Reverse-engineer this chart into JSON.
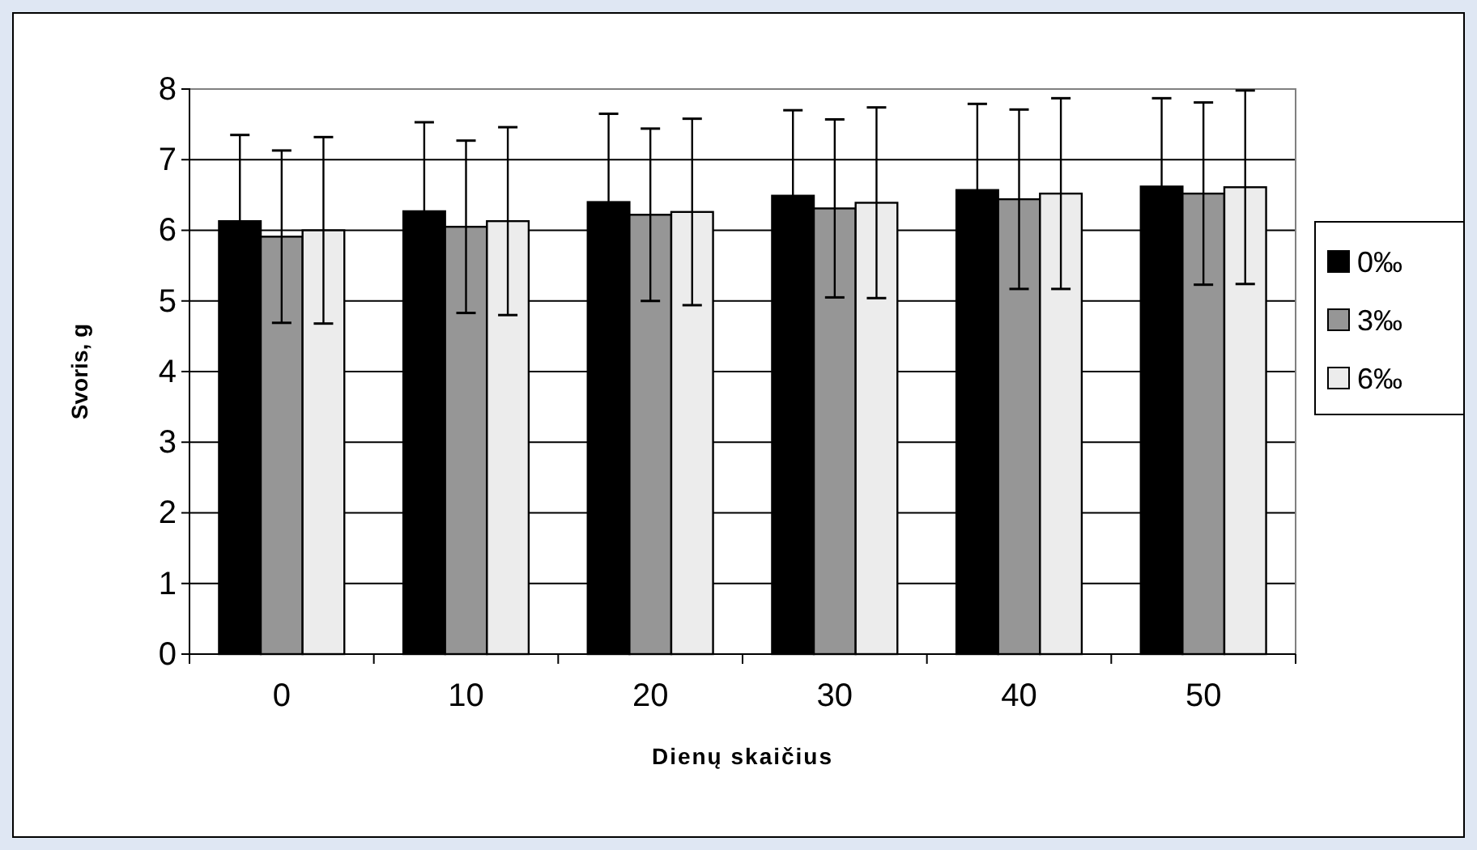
{
  "chart_data": {
    "type": "bar",
    "xlabel": "Dienų skaičius",
    "ylabel": "Svoris, g",
    "categories": [
      "0",
      "10",
      "20",
      "30",
      "40",
      "50"
    ],
    "series": [
      {
        "name": "0‰",
        "color": "#000000",
        "values": [
          6.13,
          6.27,
          6.4,
          6.49,
          6.57,
          6.62
        ],
        "errors": [
          1.22,
          1.26,
          1.25,
          1.21,
          1.22,
          1.25
        ]
      },
      {
        "name": "3‰",
        "color": "#969696",
        "values": [
          5.91,
          6.05,
          6.22,
          6.31,
          6.44,
          6.52
        ],
        "errors": [
          1.22,
          1.22,
          1.22,
          1.26,
          1.27,
          1.29
        ]
      },
      {
        "name": "6‰",
        "color": "#ececec",
        "values": [
          6.0,
          6.13,
          6.26,
          6.39,
          6.52,
          6.61
        ],
        "errors": [
          1.32,
          1.33,
          1.32,
          1.35,
          1.35,
          1.37
        ]
      }
    ],
    "ylim": [
      0,
      8
    ],
    "yticks": [
      0,
      1,
      2,
      3,
      4,
      5,
      6,
      7,
      8
    ],
    "grid": "y",
    "legend": "right"
  }
}
